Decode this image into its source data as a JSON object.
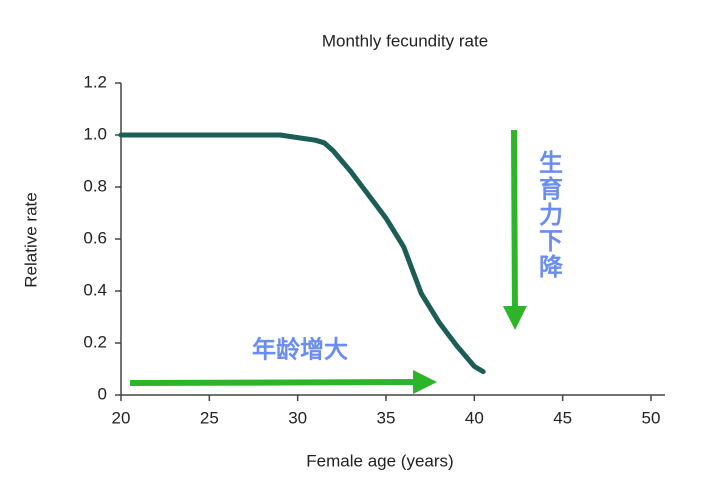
{
  "chart_data": {
    "type": "line",
    "title": "Monthly fecundity rate",
    "x_label": "Female age (years)",
    "y_label": "Relative rate",
    "x": [
      20,
      25,
      29,
      30,
      31,
      31.5,
      32,
      33,
      34,
      35,
      36,
      36.5,
      37,
      38,
      39,
      40,
      40.5
    ],
    "values": [
      1.0,
      1.0,
      1.0,
      0.99,
      0.98,
      0.97,
      0.94,
      0.86,
      0.77,
      0.68,
      0.57,
      0.48,
      0.39,
      0.28,
      0.19,
      0.11,
      0.09
    ],
    "color": "#1c5e56",
    "xlim": [
      20,
      50
    ],
    "xticks": [
      20,
      25,
      30,
      35,
      40,
      45,
      50
    ],
    "ylim": [
      0,
      1.2
    ],
    "yticks": [
      0,
      0.2,
      0.4,
      0.6,
      0.8,
      {
        "value": 1,
        "label": "1.0"
      },
      1.2
    ],
    "annotations": [
      "年龄增大",
      "生育力下降"
    ]
  }
}
